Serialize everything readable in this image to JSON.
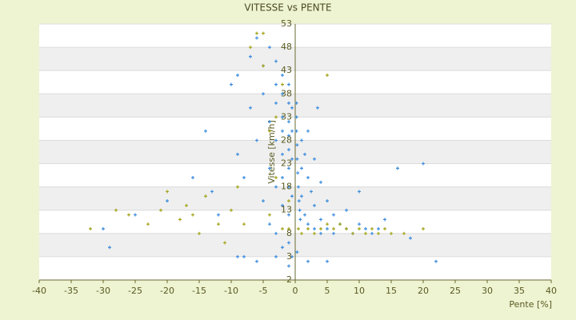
{
  "chart_data": {
    "type": "scatter",
    "title": "VITESSE vs PENTE",
    "x_label": "Pente [%]",
    "y_label": "Vitesse [km/h]",
    "xlim": [
      -40,
      40
    ],
    "xticks": [
      -40,
      -35,
      -30,
      -25,
      -20,
      -15,
      -10,
      -5,
      0,
      5,
      10,
      15,
      20,
      25,
      30,
      35,
      40
    ],
    "ylim": [
      -2,
      53
    ],
    "yticks": [
      -2,
      3,
      8,
      13,
      18,
      23,
      28,
      33,
      38,
      43,
      48,
      53
    ],
    "grid": true,
    "series": [
      {
        "color": "#3d8ddc",
        "x": [
          -30,
          -29,
          -25,
          -20,
          -16,
          -14,
          -13,
          -12,
          -10,
          -9,
          -9,
          -8,
          -8,
          -7,
          -7,
          -6,
          -6,
          -5,
          -5,
          -5,
          -4,
          -4,
          -4,
          -4,
          -3,
          -3,
          -3,
          -3,
          -3,
          -3,
          -2,
          -2,
          -2,
          -2,
          -2,
          -2,
          -2,
          -2,
          -1,
          -1,
          -1,
          -1,
          -1,
          -1,
          -1,
          -1,
          -1,
          -0.5,
          -0.5,
          -0.5,
          -0.5,
          -0.5,
          0.2,
          0.2,
          0.2,
          0.3,
          0.3,
          0.4,
          0.5,
          0.6,
          0.7,
          0.8,
          1,
          1,
          1,
          1.5,
          1.5,
          2,
          2,
          2,
          2.5,
          3,
          3,
          3,
          3.5,
          4,
          4,
          4,
          5,
          5,
          6,
          6,
          7,
          8,
          8,
          9,
          10,
          10,
          11,
          12,
          13,
          14,
          16,
          18,
          20,
          22,
          5,
          2,
          0.3,
          -1,
          -3,
          -6,
          -9
        ],
        "values": [
          9,
          5,
          12,
          15,
          20,
          30,
          17,
          12,
          40,
          42,
          25,
          3,
          20,
          35,
          46,
          50,
          28,
          44,
          38,
          15,
          48,
          32,
          22,
          10,
          45,
          40,
          36,
          28,
          18,
          8,
          42,
          38,
          33,
          30,
          25,
          20,
          14,
          5,
          40,
          36,
          32,
          29,
          26,
          22,
          18,
          12,
          6,
          35,
          30,
          24,
          16,
          3,
          36,
          33,
          30,
          27,
          24,
          21,
          18,
          15,
          13,
          11,
          28,
          22,
          16,
          25,
          12,
          30,
          20,
          10,
          17,
          24,
          14,
          9,
          35,
          19,
          11,
          8,
          15,
          9,
          12,
          8,
          10,
          9,
          13,
          8,
          17,
          10,
          9,
          8,
          9,
          11,
          22,
          7,
          23,
          2,
          2,
          2,
          4,
          1,
          3,
          2,
          3
        ]
      },
      {
        "color": "#a4a41c",
        "x": [
          -32,
          -28,
          -26,
          -23,
          -21,
          -20,
          -18,
          -17,
          -16,
          -15,
          -14,
          -12,
          -11,
          -10,
          -9,
          -8,
          -7,
          -6,
          -5,
          -5,
          -4,
          -4,
          -3,
          -2,
          -1,
          -1,
          0.5,
          1,
          2,
          3,
          4,
          5,
          5,
          6,
          7,
          8,
          9,
          10,
          11,
          12,
          13,
          14,
          15,
          17,
          20,
          -2,
          -3
        ],
        "values": [
          9,
          13,
          12,
          10,
          13,
          17,
          11,
          14,
          12,
          8,
          16,
          10,
          6,
          13,
          18,
          10,
          48,
          51,
          51,
          44,
          30,
          12,
          20,
          9,
          9,
          15,
          9,
          8,
          9,
          8,
          9,
          10,
          42,
          9,
          10,
          9,
          8,
          9,
          8,
          9,
          8,
          9,
          8,
          8,
          9,
          40,
          33
        ]
      }
    ]
  }
}
